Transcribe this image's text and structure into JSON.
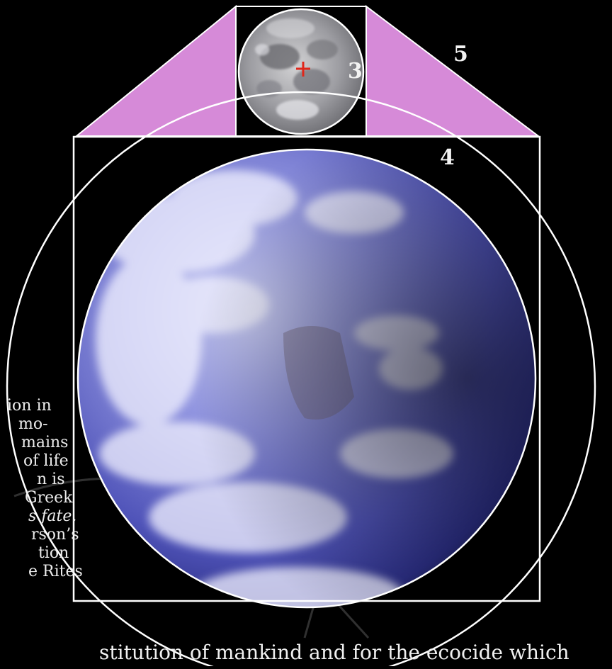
{
  "diagram": {
    "labels": {
      "moon_circle": "3",
      "square": "4",
      "outer_circle": "5"
    },
    "colors": {
      "background": "#000000",
      "triangle_fill": "#d68ad8",
      "frame_stroke": "#ffffff",
      "center_cross": "#e0261a",
      "earth": "#5a5ec8",
      "moon": "#a8a8ac"
    }
  },
  "side_text": {
    "lines": [
      "ion in",
      "mo-",
      "mains",
      "of life",
      "n is",
      "Greek",
      "s fate.",
      "rson’s",
      "tion",
      "e Rites"
    ]
  },
  "bottom_text": "stitution of mankind and for the ecocide which"
}
